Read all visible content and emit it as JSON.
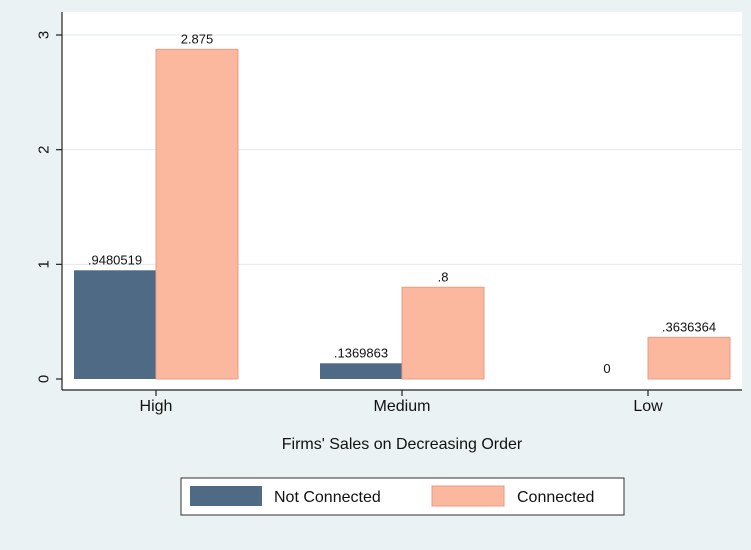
{
  "chart_data": {
    "type": "bar",
    "categories": [
      "High",
      "Medium",
      "Low"
    ],
    "series": [
      {
        "name": "Not Connected",
        "values": [
          0.9480519,
          0.1369863,
          0
        ],
        "labels": [
          ".9480519",
          ".1369863",
          "0"
        ]
      },
      {
        "name": "Connected",
        "values": [
          2.875,
          0.8,
          0.3636364
        ],
        "labels": [
          "2.875",
          ".8",
          ".3636364"
        ]
      }
    ],
    "title": "",
    "xlabel": "Firms' Sales on Decreasing Order",
    "ylabel": "",
    "ylim": [
      0,
      3.1
    ],
    "yticks": [
      0,
      1,
      2,
      3
    ],
    "ytick_labels": [
      "0",
      "1",
      "2",
      "3"
    ],
    "grid": true,
    "legend_position": "bottom",
    "colors": {
      "background": "#eaf2f3",
      "plot_background": "#ffffff",
      "grid": "#e3e8ea",
      "not_connected": "#4f6a85",
      "connected": "#fcb89f",
      "connected_stroke": "#e79e84"
    }
  }
}
